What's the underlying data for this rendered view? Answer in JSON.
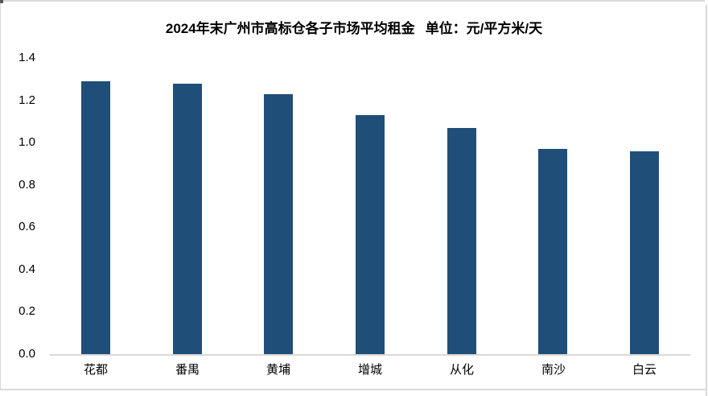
{
  "title": {
    "text": "2024年末广州市高标仓各子市场平均租金",
    "unit_label": "单位：元/平方米/天"
  },
  "chart_data": {
    "type": "bar",
    "title": "2024年末广州市高标仓各子市场平均租金",
    "unit_label": "单位：元/平方米/天",
    "categories": [
      "花都",
      "番禺",
      "黄埔",
      "增城",
      "从化",
      "南沙",
      "白云"
    ],
    "values": [
      1.29,
      1.28,
      1.23,
      1.13,
      1.07,
      0.97,
      0.96
    ],
    "xlabel": "",
    "ylabel": "",
    "ylim": [
      0,
      1.4
    ],
    "yticks": [
      0.0,
      0.2,
      0.4,
      0.6,
      0.8,
      1.0,
      1.2,
      1.4
    ],
    "ytick_labels": [
      "0.0",
      "0.2",
      "0.4",
      "0.6",
      "0.8",
      "1.0",
      "1.2",
      "1.4"
    ],
    "grid": false,
    "legend": false,
    "bar_color": "#1F4E79",
    "axis_color": "#D9D9D9",
    "text_color": "#000000"
  }
}
